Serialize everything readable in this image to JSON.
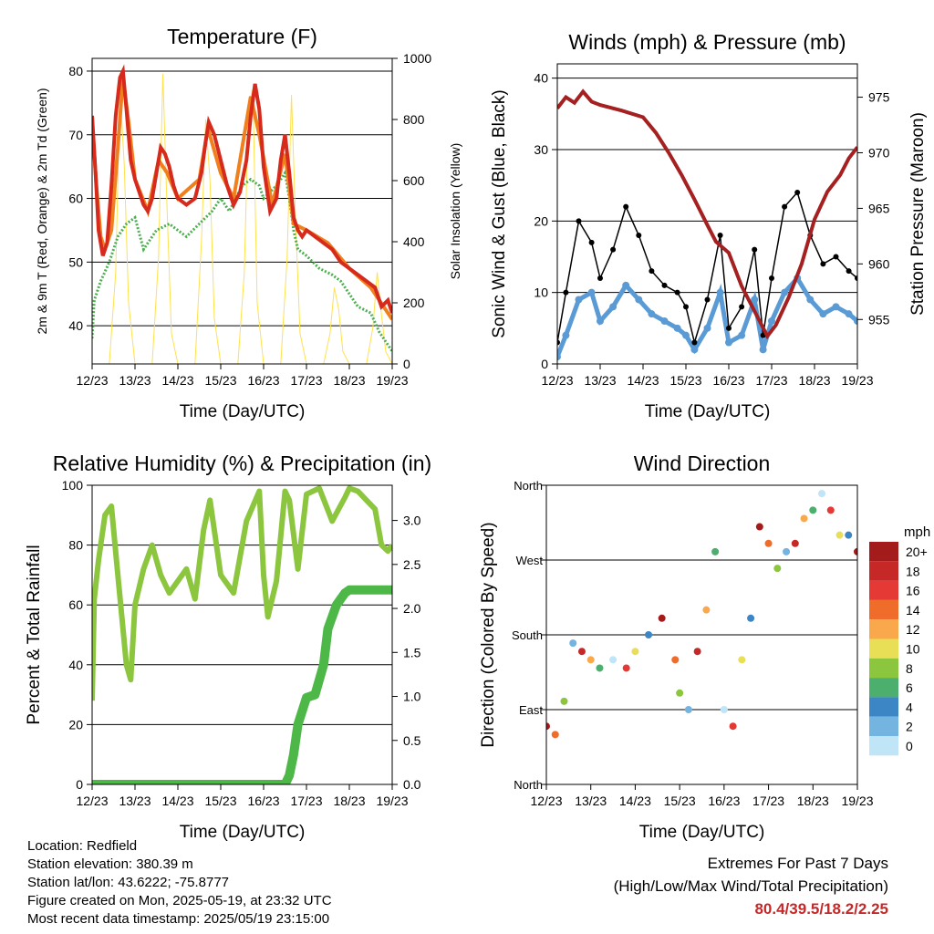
{
  "xticks": [
    "12/23",
    "13/23",
    "14/23",
    "15/23",
    "16/23",
    "17/23",
    "18/23",
    "19/23"
  ],
  "chart_data": [
    {
      "type": "line",
      "title": "Temperature (F)",
      "xlabel": "Time (Day/UTC)",
      "ylabel": "2m & 9m T (Red, Orange) & 2m Td (Green)",
      "ylabel_right": "Solar Insolation (Yellow)",
      "ylim": [
        34,
        82
      ],
      "y_ticks": [
        40,
        50,
        60,
        70,
        80
      ],
      "ylim_right": [
        0,
        1000
      ],
      "y_ticks_right": [
        0,
        200,
        400,
        600,
        800,
        1000
      ],
      "x_days": [
        12,
        19
      ],
      "series": [
        {
          "color": "#d52a1c",
          "x": [
            12.0,
            12.08,
            12.15,
            12.25,
            12.35,
            12.45,
            12.55,
            12.65,
            12.72,
            12.8,
            12.9,
            13.0,
            13.1,
            13.2,
            13.3,
            13.4,
            13.5,
            13.6,
            13.7,
            13.8,
            13.9,
            14.0,
            14.2,
            14.4,
            14.55,
            14.65,
            14.72,
            14.85,
            15.0,
            15.15,
            15.3,
            15.45,
            15.6,
            15.7,
            15.8,
            15.9,
            16.0,
            16.15,
            16.3,
            16.4,
            16.5,
            16.6,
            16.7,
            16.8,
            16.9,
            17.0,
            17.2,
            17.4,
            17.6,
            17.8,
            18.0,
            18.2,
            18.4,
            18.6,
            18.75,
            18.9,
            19.0
          ],
          "y": [
            73,
            64,
            55,
            51,
            53,
            62,
            73,
            79,
            80,
            74,
            66,
            63,
            61,
            59,
            58,
            60,
            64,
            68,
            67,
            65,
            62,
            60,
            59,
            60,
            64,
            69,
            72,
            70,
            66,
            62,
            59,
            61,
            66,
            73,
            78,
            74,
            65,
            58,
            60,
            66,
            70,
            64,
            57,
            55,
            54,
            55,
            54,
            53,
            52,
            50,
            49,
            48,
            47,
            46,
            43,
            44,
            42
          ]
        },
        {
          "color": "#f07f1e",
          "x": [
            12.0,
            12.1,
            12.2,
            12.3,
            12.45,
            12.6,
            12.72,
            12.85,
            13.0,
            13.3,
            13.55,
            13.75,
            14.0,
            14.5,
            14.7,
            15.0,
            15.3,
            15.7,
            15.9,
            16.2,
            16.5,
            16.7,
            17.0,
            17.5,
            18.0,
            18.5,
            18.8,
            19.0
          ],
          "y": [
            72,
            62,
            54,
            52,
            55,
            68,
            79,
            72,
            63,
            58,
            66,
            64,
            60,
            63,
            71,
            64,
            60,
            76,
            70,
            59,
            67,
            56,
            55,
            53,
            49,
            46,
            43,
            41
          ]
        },
        {
          "color": "#4caf50",
          "x": [
            12.0,
            12.05,
            12.2,
            12.4,
            12.6,
            12.8,
            13.0,
            13.2,
            13.5,
            13.8,
            14.0,
            14.2,
            14.5,
            14.8,
            15.0,
            15.2,
            15.5,
            15.7,
            15.9,
            16.0,
            16.3,
            16.5,
            16.6,
            16.7,
            16.8,
            17.0,
            17.3,
            17.6,
            17.8,
            18.0,
            18.2,
            18.5,
            18.7,
            18.9,
            19.0
          ],
          "y": [
            38,
            44,
            47,
            50,
            54,
            56,
            57,
            52,
            55,
            56,
            55,
            54,
            56,
            58,
            60,
            58,
            62,
            63,
            62,
            60,
            62,
            64,
            60,
            55,
            52,
            51,
            49,
            48,
            47,
            45,
            43,
            42,
            39,
            37,
            36
          ]
        },
        {
          "color": "#ffe14d",
          "x": [
            12.0,
            12.2,
            12.4,
            12.55,
            12.65,
            12.75,
            12.85,
            13.0,
            13.2,
            13.4,
            13.55,
            13.65,
            13.75,
            13.85,
            14.0,
            14.2,
            14.4,
            14.55,
            14.65,
            14.75,
            14.85,
            15.0,
            15.2,
            15.4,
            15.55,
            15.65,
            15.75,
            15.85,
            16.0,
            16.2,
            16.4,
            16.55,
            16.65,
            16.75,
            16.85,
            17.0,
            17.2,
            17.4,
            17.55,
            17.65,
            17.75,
            17.85,
            18.0,
            18.2,
            18.4,
            18.55,
            18.65,
            18.75,
            18.85,
            19.0
          ],
          "y": [
            0,
            0,
            0,
            300,
            900,
            650,
            200,
            0,
            0,
            0,
            350,
            950,
            500,
            100,
            0,
            0,
            0,
            400,
            800,
            600,
            150,
            0,
            0,
            0,
            300,
            850,
            900,
            200,
            0,
            0,
            0,
            350,
            880,
            450,
            100,
            0,
            0,
            0,
            100,
            250,
            180,
            40,
            0,
            0,
            0,
            120,
            300,
            160,
            40,
            0
          ]
        }
      ]
    },
    {
      "type": "scatter",
      "title": "Winds (mph) & Pressure (mb)",
      "xlabel": "Time (Day/UTC)",
      "ylabel": "Sonic Wind & Gust (Blue, Black)",
      "ylabel_right": "Station Pressure (Maroon)",
      "ylim": [
        0,
        42
      ],
      "y_ticks": [
        0,
        10,
        20,
        30,
        40
      ],
      "ylim_right": [
        951.0,
        978.0
      ],
      "y_ticks_right": [
        955,
        960,
        965,
        970,
        975
      ],
      "x_days": [
        12,
        19
      ],
      "series": [
        {
          "color": "#5b9bd5",
          "x": [
            12.0,
            12.2,
            12.5,
            12.8,
            13.0,
            13.3,
            13.6,
            13.9,
            14.2,
            14.5,
            14.8,
            15.0,
            15.2,
            15.5,
            15.8,
            16.0,
            16.3,
            16.6,
            16.8,
            17.0,
            17.3,
            17.6,
            17.9,
            18.2,
            18.5,
            18.8,
            19.0
          ],
          "y": [
            1,
            4,
            9,
            10,
            6,
            8,
            11,
            9,
            7,
            6,
            5,
            4,
            2,
            5,
            10,
            3,
            4,
            9,
            2,
            6,
            10,
            12,
            9,
            7,
            8,
            7,
            6
          ]
        },
        {
          "color": "#000000",
          "x": [
            12.0,
            12.2,
            12.5,
            12.8,
            13.0,
            13.3,
            13.6,
            13.9,
            14.2,
            14.5,
            14.8,
            15.0,
            15.2,
            15.5,
            15.8,
            16.0,
            16.3,
            16.6,
            16.8,
            17.0,
            17.3,
            17.6,
            17.9,
            18.2,
            18.5,
            18.8,
            19.0
          ],
          "y": [
            3,
            10,
            20,
            17,
            12,
            16,
            22,
            18,
            13,
            11,
            10,
            8,
            3,
            9,
            18,
            5,
            8,
            16,
            4,
            12,
            22,
            24,
            18,
            14,
            15,
            13,
            12
          ]
        },
        {
          "color": "#a52020",
          "x": [
            12.0,
            12.2,
            12.4,
            12.6,
            12.8,
            13.0,
            13.5,
            14.0,
            14.3,
            14.6,
            14.9,
            15.2,
            15.5,
            15.7,
            16.0,
            16.3,
            16.5,
            16.7,
            16.9,
            17.1,
            17.4,
            17.7,
            18.0,
            18.3,
            18.6,
            18.8,
            19.0
          ],
          "y": [
            974.0,
            975.0,
            974.5,
            975.5,
            974.6,
            974.3,
            973.8,
            973.2,
            971.8,
            970.0,
            968.0,
            965.8,
            963.5,
            962.0,
            961.0,
            958.0,
            956.5,
            955.0,
            953.5,
            954.5,
            957.0,
            960.0,
            964.0,
            966.5,
            968.0,
            969.5,
            970.5
          ]
        }
      ]
    },
    {
      "type": "line",
      "title": "Relative Humidity (%) & Precipitation (in)",
      "xlabel": "Time (Day/UTC)",
      "ylabel": "Percent & Total Rainfall",
      "ylim": [
        0,
        100
      ],
      "y_ticks": [
        0,
        20,
        40,
        60,
        80,
        100
      ],
      "ylim_right": [
        0,
        3.4
      ],
      "y_ticks_right": [
        "0.0",
        "0.5",
        "1.0",
        "1.5",
        "2.0",
        "2.5",
        "3.0"
      ],
      "x_days": [
        12,
        19
      ],
      "series": [
        {
          "color": "#8cc63f",
          "x": [
            12.0,
            12.05,
            12.15,
            12.3,
            12.45,
            12.6,
            12.8,
            12.9,
            13.0,
            13.2,
            13.4,
            13.6,
            13.8,
            14.0,
            14.2,
            14.4,
            14.6,
            14.75,
            14.9,
            15.0,
            15.3,
            15.6,
            15.9,
            16.0,
            16.1,
            16.3,
            16.5,
            16.6,
            16.8,
            17.0,
            17.3,
            17.6,
            17.9,
            18.0,
            18.2,
            18.4,
            18.6,
            18.75,
            18.9,
            19.0
          ],
          "y": [
            28,
            62,
            75,
            90,
            93,
            70,
            40,
            35,
            60,
            72,
            80,
            70,
            64,
            68,
            72,
            62,
            85,
            95,
            80,
            70,
            64,
            88,
            98,
            70,
            56,
            68,
            98,
            95,
            72,
            97,
            99,
            88,
            96,
            99,
            98,
            95,
            92,
            80,
            78,
            80
          ]
        },
        {
          "color": "#4db848",
          "x": [
            12.0,
            13.0,
            14.0,
            15.0,
            16.0,
            16.5,
            16.6,
            16.7,
            16.8,
            17.0,
            17.2,
            17.4,
            17.5,
            17.7,
            17.9,
            18.0,
            18.5,
            19.0
          ],
          "y": [
            0,
            0,
            0,
            0,
            0,
            0,
            3,
            10,
            20,
            29,
            30,
            40,
            52,
            60,
            64,
            65,
            65,
            65
          ]
        }
      ]
    },
    {
      "type": "scatter",
      "title": "Wind Direction",
      "xlabel": "Time (Day/UTC)",
      "ylabel": "Direction (Colored By Speed)",
      "y_categories": [
        "North",
        "East",
        "South",
        "West",
        "North"
      ],
      "ylim": [
        0,
        360
      ],
      "x_days": [
        12,
        19
      ],
      "legend": {
        "title": "mph",
        "labels": [
          "20+",
          "18",
          "16",
          "14",
          "12",
          "10",
          "8",
          "6",
          "4",
          "2",
          "0"
        ],
        "colors": [
          "#a31b1b",
          "#c62828",
          "#e53935",
          "#ef6c2a",
          "#f9a94b",
          "#e8df57",
          "#8cc63f",
          "#4caf6e",
          "#3d86c6",
          "#74b4e0",
          "#bfe5f7"
        ]
      },
      "series": [
        {
          "x": [
            12.0,
            12.2,
            12.4,
            12.6,
            12.8,
            13.0,
            13.2,
            13.5,
            13.8,
            14.0,
            14.3,
            14.6,
            14.9,
            15.0,
            15.2,
            15.4,
            15.6,
            15.8,
            16.0,
            16.2,
            16.4,
            16.6,
            16.8,
            17.0,
            17.2,
            17.4,
            17.6,
            17.8,
            18.0,
            18.2,
            18.4,
            18.6,
            18.8,
            19.0
          ],
          "y": [
            70,
            60,
            100,
            170,
            160,
            150,
            140,
            150,
            140,
            160,
            180,
            200,
            150,
            110,
            90,
            160,
            210,
            280,
            90,
            70,
            150,
            200,
            310,
            290,
            260,
            280,
            290,
            320,
            330,
            350,
            330,
            300,
            300,
            280
          ]
        }
      ]
    }
  ],
  "info": {
    "location": "Location: Redfield",
    "elevation": "Station elevation: 380.39 m",
    "latlon": "Station lat/lon: 43.6222; -75.8777",
    "created": "Figure created on Mon, 2025-05-19, at 23:32 UTC",
    "recent": "Most recent data timestamp: 2025/05/19 23:15:00"
  },
  "extremes": {
    "title": "Extremes For Past 7 Days",
    "subtitle": "(High/Low/Max Wind/Total Precipitation)",
    "values": "80.4/39.5/18.2/2.25"
  }
}
